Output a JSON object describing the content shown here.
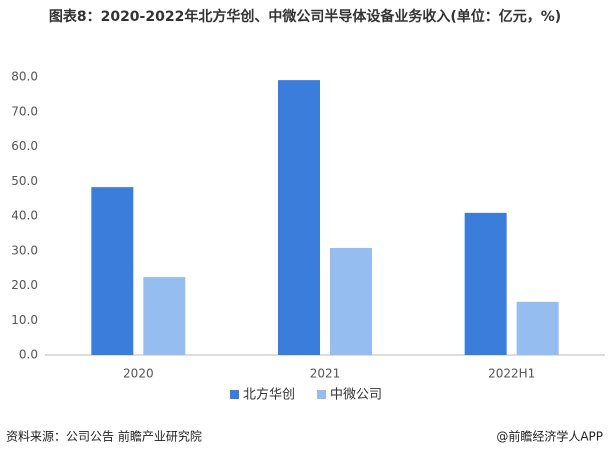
{
  "chart_data": {
    "type": "bar",
    "title": "图表8：2020-2022年北方华创、中微公司半导体设备业务收入(单位：亿元，%)",
    "categories": [
      "2020",
      "2021",
      "2022H1"
    ],
    "series": [
      {
        "name": "北方华创",
        "color": "#3b7ddb",
        "values": [
          48.3,
          79.1,
          40.9
        ]
      },
      {
        "name": "中微公司",
        "color": "#95bdf0",
        "values": [
          22.4,
          30.8,
          15.3
        ]
      }
    ],
    "ylim": [
      0,
      80
    ],
    "yticks": [
      {
        "value": 0,
        "label": "0.0"
      },
      {
        "value": 10,
        "label": "10.0"
      },
      {
        "value": 20,
        "label": "20.0"
      },
      {
        "value": 30,
        "label": "30.0"
      },
      {
        "value": 40,
        "label": "40.0"
      },
      {
        "value": 50,
        "label": "50.0"
      },
      {
        "value": 60,
        "label": "60.0"
      },
      {
        "value": 70,
        "label": "70.0"
      },
      {
        "value": 80,
        "label": "80.0"
      }
    ],
    "grid": false,
    "legend": "bottom",
    "source": "资料来源：公司公告 前瞻产业研究院",
    "credit": "@前瞻经济学人APP"
  }
}
